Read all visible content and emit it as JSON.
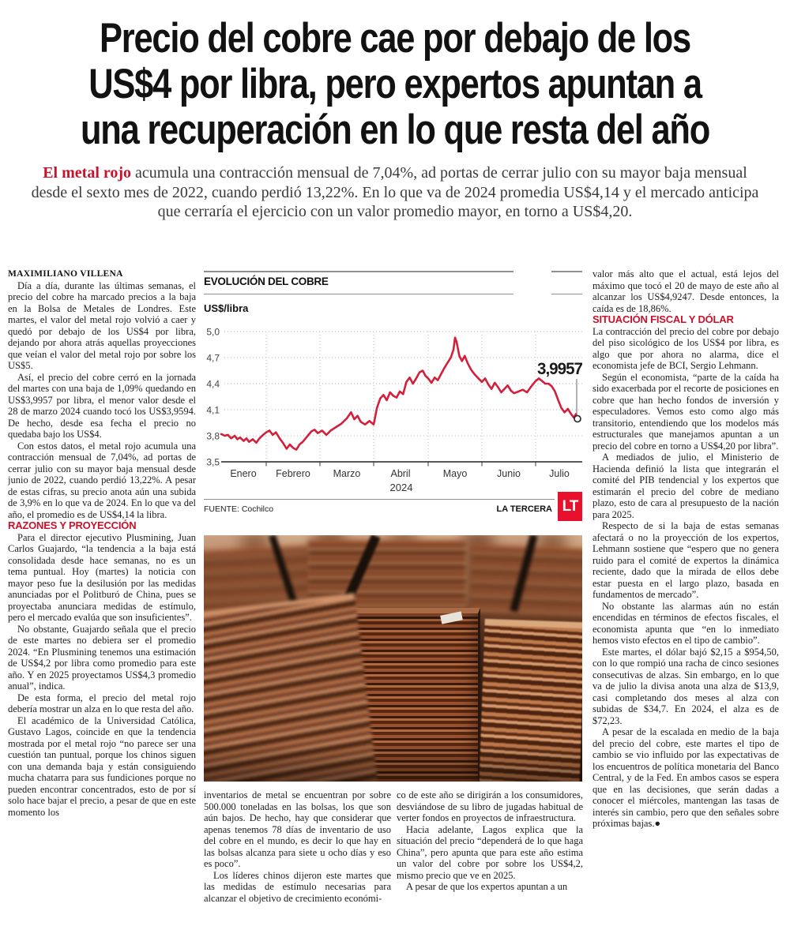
{
  "article": {
    "headline_lines": [
      "Precio del cobre cae por debajo de los",
      "US$4 por libra, pero expertos apuntan a",
      "una recuperación en lo que resta del año"
    ],
    "lede": {
      "lead_in": "El metal rojo",
      "text": " acumula una contracción mensual de 7,04%, ad portas de cerrar julio con su mayor baja mensual desde el sexto mes de 2022, cuando perdió 13,22%. En lo que va de 2024 promedia US$4,14 y el mercado anticipa que cerraría el ejercicio con un valor promedio mayor, en torno a US$4,20."
    },
    "byline": "MAXIMILIANO VILLENA",
    "col1": {
      "paras1": [
        "Día a día, durante las últimas semanas, el precio del cobre ha marcado precios a la baja en la Bolsa de Metales de Londres. Este martes, el valor del metal rojo volvió a caer y quedó por debajo de los US$4 por libra, dejando por ahora atrás aquellas proyecciones que veían el valor del metal rojo por sobre los US$5.",
        "Así, el precio del cobre cerró en la jornada del martes con una baja de 1,09% quedando en US$3,9957 por libra, el menor valor desde el 28 de marzo 2024 cuando tocó los US$3,9594. De hecho, desde esa fecha el precio no quedaba bajo los US$4.",
        "Con estos datos, el metal rojo acumula una contracción mensual de 7,04%, ad portas de cerrar julio con su mayor baja mensual desde junio de 2022, cuando perdió 13,22%. A pesar de estas cifras, su precio anota aún una subida de 3,9% en lo que va de 2024. En lo que va del año, el promedio es de US$4,14 la libra."
      ],
      "subhead": "RAZONES Y PROYECCIÓN",
      "paras2": [
        "Para el director ejecutivo Plusmining, Juan Carlos Guajardo, “la tendencia a la baja está consolidada desde hace semanas, no es un tema puntual. Hoy (martes) la noticia con mayor peso fue la desilusión por las medidas anunciadas por el Politburó de China, pues se proyectaba anunciara medidas de estímulo, pero el mercado evalúa que son insuficientes”.",
        "No obstante, Guajardo señala que el precio de este martes no debiera ser el promedio 2024. “En Plusmining tenemos una estimación de US$4,2 por libra como promedio para este año. Y en 2025 proyectamos US$4,3 promedio anual”, indica.",
        "De esta forma, el precio del metal rojo debería mostrar un alza en lo que resta del año.",
        "El académico de la Universidad Católica, Gustavo Lagos, coincide en que la tendencia mostrada por el metal rojo “no parece ser una cuestión tan puntual, porque los chinos siguen con una demanda baja y están consiguiendo mucha chatarra para sus fundiciones porque no pueden encontrar concentrados, esto de por sí solo hace bajar el precio, a pesar de que en este momento los"
      ]
    },
    "mid_a": [
      "inventarios de metal se encuentran por sobre 500.000 toneladas en las bolsas, los que son aún bajos. De hecho, hay que considerar que apenas tenemos 78 días de inventario de uso del cobre en el mundo, es decir lo que hay en las bolsas alcanza para siete u ocho días y eso es poco”.",
      "Los líderes chinos dijeron este martes que las medidas de estímulo necesarias para alcanzar el objetivo de crecimiento económi-"
    ],
    "mid_b": [
      "co de este año se dirigirán a los consumidores, desviándose de su libro de jugadas habitual de verter fondos en proyectos de infraestructura.",
      "Hacia adelante, Lagos explica que la situación del precio “dependerá de lo que haga China”, pero apunta que para este año estima un valor del cobre por sobre los US$4,2, mismo precio que ve en 2025.",
      "A pesar de que los expertos apuntan a un"
    ],
    "col4": {
      "intro": "valor más alto que el actual, está lejos del máximo que tocó el 20 de mayo de este año al alcanzar los US$4,9247. Desde entonces, la caída es de 18,86%.",
      "subhead": "SITUACIÓN FISCAL Y DÓLAR",
      "paras": [
        "La contracción del precio del cobre por debajo del piso sicológico de los US$4 por libra, es algo que por ahora no alarma, dice el economista jefe de BCI, Sergio Lehmann.",
        "Según el economista, “parte de la caída ha sido exacerbada por el recorte de posiciones en cobre que han hecho fondos de inversión y especuladores. Vemos esto como algo más transitorio, entendiendo que los modelos más estructurales que manejamos apuntan a un precio del cobre en torno a US$4,20 por libra”.",
        "A mediados de julio, el Ministerio de Hacienda definió la lista que integrarán el comité del PIB tendencial y los expertos que estimarán el precio del cobre de mediano plazo, esto de cara al presupuesto de la nación para 2025.",
        "Respecto de si la baja de estas semanas afectará o no la proyección de los expertos, Lehmann sostiene que “espero que no genera ruido para el comité de expertos la dinámica reciente, dado que la mirada de ellos debe estar puesta en el largo plazo, basada en fundamentos de mercado”.",
        "No obstante las alarmas aún no están encendidas en términos de efectos fiscales, el economista apunta que “en lo inmediato hemos visto efectos en el tipo de cambio”.",
        "Este martes, el dólar bajó $2,15 a $954,50, con lo que rompió una racha de cinco sesiones consecutivas de alzas. Sin embargo, en lo que va de julio la divisa anota una alza de $13,9, casi completando dos meses al alza con subidas de $34,7. En 2024, el alza es de $72,23.",
        "A pesar de la escalada en medio de la baja del precio del cobre, este martes el tipo de cambio se vio influido por las expectativas de los encuentros de política monetaria del Banco Central, y de la Fed. En ambos casos se espera que en las decisiones, que serán dadas a conocer el miércoles, mantengan las tasas de interés sin cambio, pero que den señales sobre próximas bajas.●"
      ]
    }
  },
  "chart_data": {
    "type": "line",
    "title": "EVOLUCIÓN DEL COBRE",
    "unit_label": "US$/libra",
    "x_unit": "months since 2024-01-01 (0=Enero ... 6=Julio)",
    "x_ticks": [
      "Enero",
      "Febrero",
      "Marzo",
      "Abril",
      "Mayo",
      "Junio",
      "Julio"
    ],
    "year": "2024",
    "y_ticks": [
      "5,0",
      "4,7",
      "4,4",
      "4,1",
      "3,8",
      "3,5"
    ],
    "ylim": [
      3.5,
      5.0
    ],
    "grid": "dotted",
    "end_label": "3,9957",
    "source": "FUENTE: Cochilco",
    "credit": "LA TERCERA",
    "logo_text": "LT",
    "series": [
      {
        "name": "Precio del cobre (US$/libra)",
        "color": "#d2203c",
        "points": [
          [
            0.0,
            3.82
          ],
          [
            0.08,
            3.8
          ],
          [
            0.15,
            3.81
          ],
          [
            0.22,
            3.77
          ],
          [
            0.3,
            3.8
          ],
          [
            0.36,
            3.76
          ],
          [
            0.42,
            3.78
          ],
          [
            0.5,
            3.74
          ],
          [
            0.56,
            3.77
          ],
          [
            0.62,
            3.73
          ],
          [
            0.7,
            3.76
          ],
          [
            0.78,
            3.72
          ],
          [
            0.85,
            3.77
          ],
          [
            0.93,
            3.81
          ],
          [
            1.0,
            3.84
          ],
          [
            1.06,
            3.86
          ],
          [
            1.12,
            3.81
          ],
          [
            1.18,
            3.84
          ],
          [
            1.25,
            3.77
          ],
          [
            1.32,
            3.71
          ],
          [
            1.38,
            3.65
          ],
          [
            1.44,
            3.7
          ],
          [
            1.5,
            3.66
          ],
          [
            1.56,
            3.64
          ],
          [
            1.62,
            3.7
          ],
          [
            1.68,
            3.73
          ],
          [
            1.76,
            3.79
          ],
          [
            1.84,
            3.85
          ],
          [
            1.9,
            3.87
          ],
          [
            1.96,
            3.83
          ],
          [
            2.04,
            3.86
          ],
          [
            2.12,
            3.81
          ],
          [
            2.2,
            3.86
          ],
          [
            2.3,
            3.9
          ],
          [
            2.4,
            3.94
          ],
          [
            2.5,
            4.0
          ],
          [
            2.58,
            4.07
          ],
          [
            2.64,
            3.99
          ],
          [
            2.7,
            4.03
          ],
          [
            2.76,
            3.96
          ],
          [
            2.84,
            3.93
          ],
          [
            2.92,
            3.97
          ],
          [
            3.0,
            3.93
          ],
          [
            3.06,
            4.12
          ],
          [
            3.12,
            4.23
          ],
          [
            3.18,
            4.27
          ],
          [
            3.24,
            4.21
          ],
          [
            3.3,
            4.3
          ],
          [
            3.36,
            4.26
          ],
          [
            3.42,
            4.24
          ],
          [
            3.48,
            4.31
          ],
          [
            3.54,
            4.28
          ],
          [
            3.6,
            4.42
          ],
          [
            3.66,
            4.47
          ],
          [
            3.72,
            4.4
          ],
          [
            3.78,
            4.46
          ],
          [
            3.84,
            4.53
          ],
          [
            3.9,
            4.55
          ],
          [
            3.95,
            4.49
          ],
          [
            4.0,
            4.46
          ],
          [
            4.06,
            4.41
          ],
          [
            4.12,
            4.47
          ],
          [
            4.18,
            4.44
          ],
          [
            4.24,
            4.51
          ],
          [
            4.3,
            4.58
          ],
          [
            4.36,
            4.64
          ],
          [
            4.42,
            4.7
          ],
          [
            4.47,
            4.79
          ],
          [
            4.5,
            4.93
          ],
          [
            4.53,
            4.88
          ],
          [
            4.58,
            4.72
          ],
          [
            4.63,
            4.66
          ],
          [
            4.68,
            4.72
          ],
          [
            4.74,
            4.63
          ],
          [
            4.8,
            4.56
          ],
          [
            4.86,
            4.51
          ],
          [
            4.92,
            4.47
          ],
          [
            5.0,
            4.42
          ],
          [
            5.06,
            4.46
          ],
          [
            5.12,
            4.39
          ],
          [
            5.18,
            4.34
          ],
          [
            5.24,
            4.41
          ],
          [
            5.3,
            4.36
          ],
          [
            5.36,
            4.3
          ],
          [
            5.42,
            4.34
          ],
          [
            5.48,
            4.38
          ],
          [
            5.54,
            4.32
          ],
          [
            5.6,
            4.29
          ],
          [
            5.68,
            4.31
          ],
          [
            5.76,
            4.33
          ],
          [
            5.84,
            4.3
          ],
          [
            5.92,
            4.37
          ],
          [
            6.0,
            4.43
          ],
          [
            6.06,
            4.46
          ],
          [
            6.12,
            4.43
          ],
          [
            6.18,
            4.4
          ],
          [
            6.24,
            4.4
          ],
          [
            6.3,
            4.37
          ],
          [
            6.36,
            4.31
          ],
          [
            6.42,
            4.21
          ],
          [
            6.48,
            4.12
          ],
          [
            6.54,
            4.07
          ],
          [
            6.6,
            4.11
          ],
          [
            6.66,
            4.05
          ],
          [
            6.71,
            4.01
          ],
          [
            6.75,
            4.05
          ],
          [
            6.78,
            3.9957
          ]
        ]
      }
    ]
  }
}
